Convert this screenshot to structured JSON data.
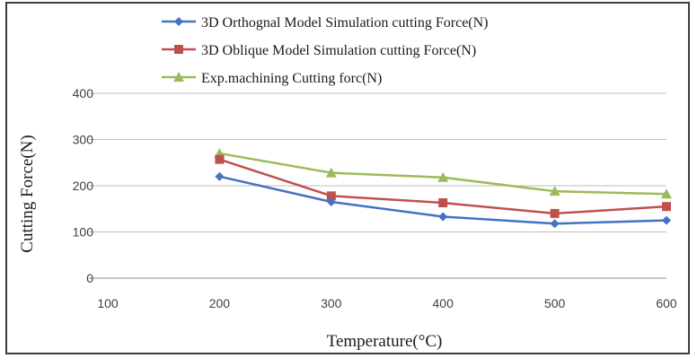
{
  "chart_data": {
    "type": "line",
    "title": "",
    "xlabel": "Temperature(°C)",
    "ylabel": "Cutting Force(N)",
    "xlim": [
      100,
      600
    ],
    "ylim": [
      0,
      400
    ],
    "x_ticks": [
      "100",
      "200",
      "300",
      "400",
      "500",
      "600"
    ],
    "y_ticks": [
      "0",
      "100",
      "200",
      "300",
      "400"
    ],
    "grid": true,
    "legend_position": "top",
    "x": [
      200,
      300,
      400,
      500,
      600
    ],
    "series": [
      {
        "name": "3D Orthognal Model Simulation cutting Force(N)",
        "color": "#4472C4",
        "marker": "diamond",
        "values": [
          220,
          165,
          133,
          118,
          125
        ]
      },
      {
        "name": "3D Oblique Model Simulation cutting Force(N)",
        "color": "#C0504D",
        "marker": "square",
        "values": [
          257,
          178,
          163,
          140,
          155
        ]
      },
      {
        "name": "Exp.machining  Cutting forc(N)",
        "color": "#9BBB59",
        "marker": "triangle",
        "values": [
          270,
          228,
          218,
          188,
          182
        ]
      }
    ]
  }
}
